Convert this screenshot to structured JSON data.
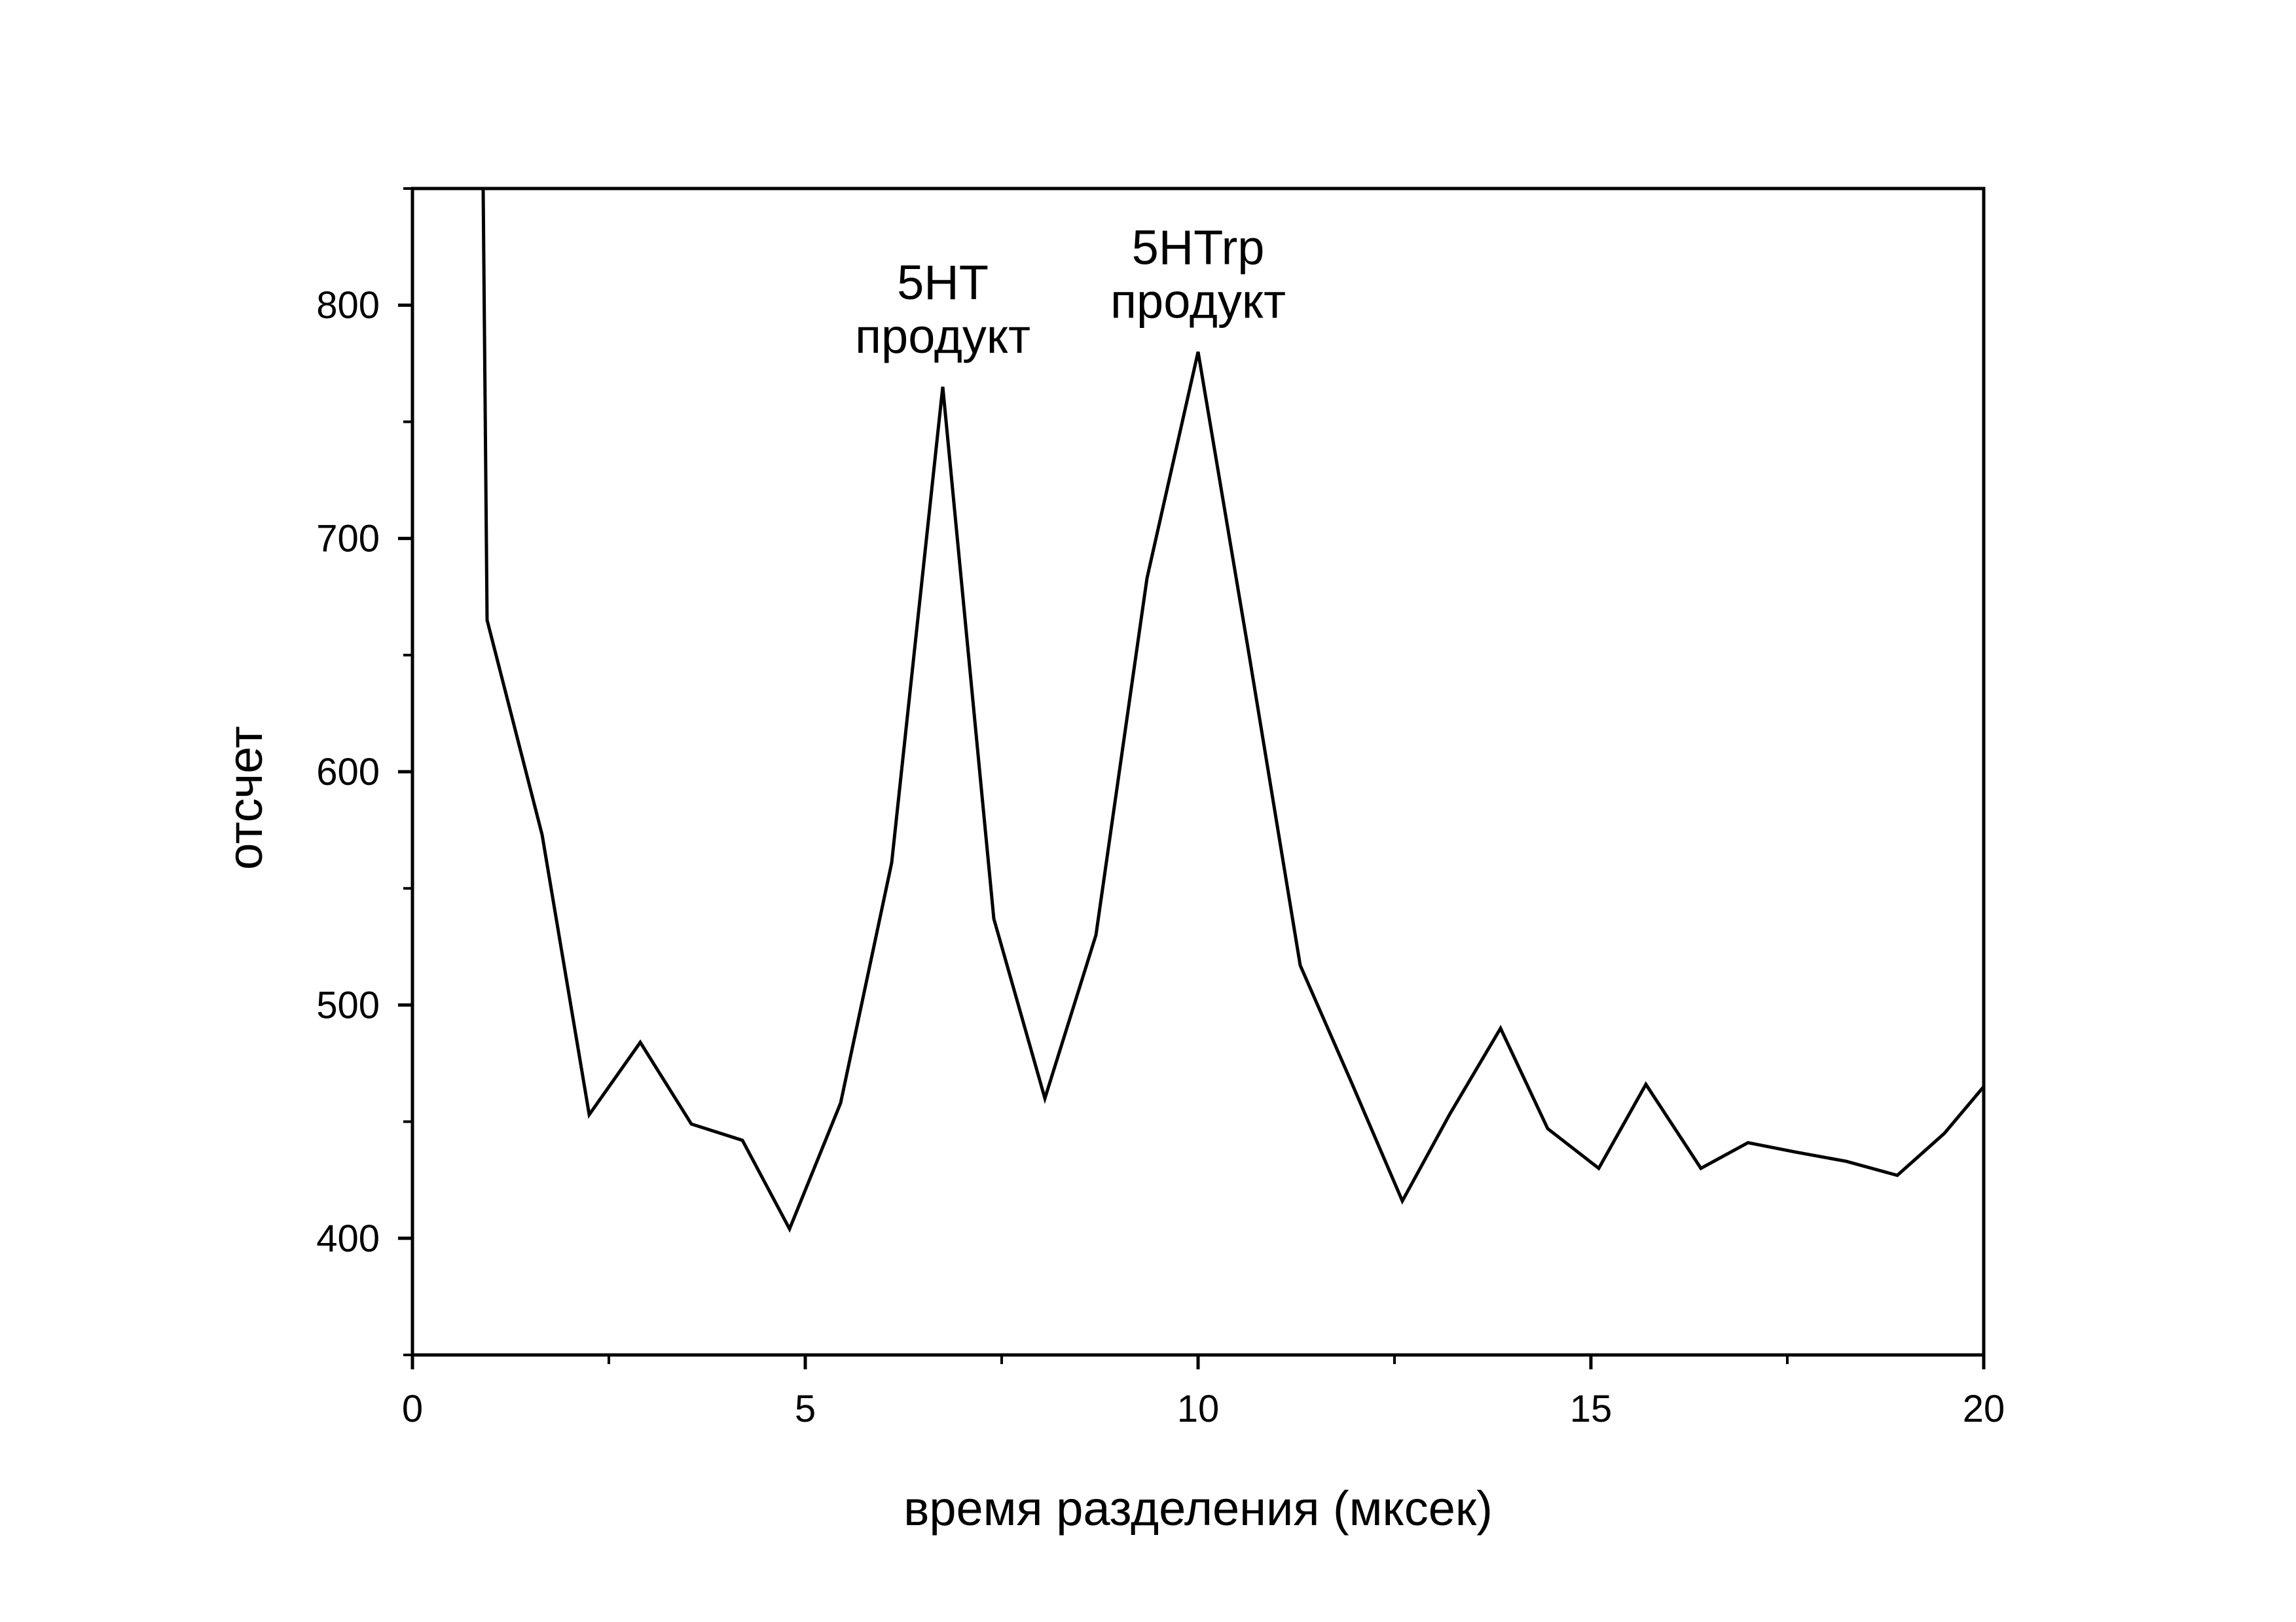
{
  "chart_data": {
    "type": "line",
    "title": "",
    "xlabel": "время разделения (мксек)",
    "ylabel": "отсчет",
    "xlim": [
      0,
      20
    ],
    "ylim": [
      350,
      850
    ],
    "xticks": [
      0,
      5,
      10,
      15,
      20
    ],
    "yticks": [
      400,
      500,
      600,
      700,
      800
    ],
    "grid": false,
    "line_color": "#000000",
    "series": [
      {
        "x": [
          0.9,
          0.95,
          1.65,
          2.25,
          2.9,
          3.55,
          4.2,
          4.8,
          5.45,
          6.1,
          6.75,
          7.4,
          8.05,
          8.7,
          9.35,
          10.0,
          10.65,
          11.3,
          11.95,
          12.6,
          13.2,
          13.85,
          14.45,
          15.1,
          15.7,
          16.4,
          17.0,
          17.6,
          18.25,
          18.9,
          19.5,
          20.0
        ],
        "y": [
          850,
          665,
          573,
          453,
          484,
          449,
          442,
          404,
          458,
          561,
          765,
          537,
          460,
          530,
          683,
          780,
          650,
          517,
          467,
          416,
          453,
          490,
          447,
          430,
          466,
          430,
          441,
          437,
          433,
          427,
          445,
          465
        ]
      }
    ],
    "annotations": [
      {
        "lines": [
          "5HT",
          "продукт"
        ],
        "x": 6.75,
        "y": 765
      },
      {
        "lines": [
          "5HTrp",
          "продукт"
        ],
        "x": 10.0,
        "y": 780
      }
    ]
  }
}
